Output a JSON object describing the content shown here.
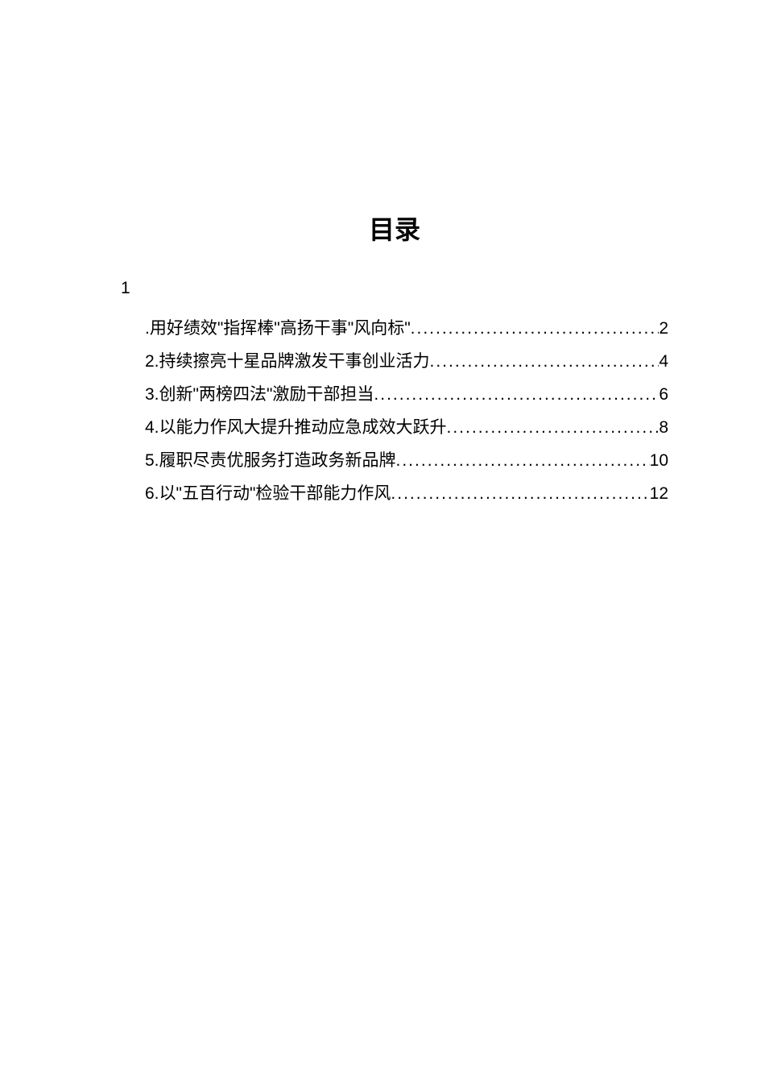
{
  "title": "目录",
  "leading_number": "1",
  "entries": [
    {
      "text": ".用好绩效\"指挥棒\"高扬干事\"风向标\"",
      "page": "2"
    },
    {
      "text": "2.持续擦亮十星品牌激发干事创业活力",
      "page": "4"
    },
    {
      "text": "3.创新\"两榜四法\"激励干部担当",
      "page": "6"
    },
    {
      "text": "4.以能力作风大提升推动应急成效大跃升",
      "page": "8"
    },
    {
      "text": "5.履职尽责优服务打造政务新品牌",
      "page": "10"
    },
    {
      "text": "6.以\"五百行动\"检验干部能力作风",
      "page": "12"
    }
  ],
  "colors": {
    "background": "#ffffff",
    "text": "#000000"
  },
  "typography": {
    "title_fontsize": 32,
    "body_fontsize": 21,
    "title_font": "SimSun",
    "body_font": "Microsoft YaHei"
  },
  "dots_fill": "..............................................."
}
